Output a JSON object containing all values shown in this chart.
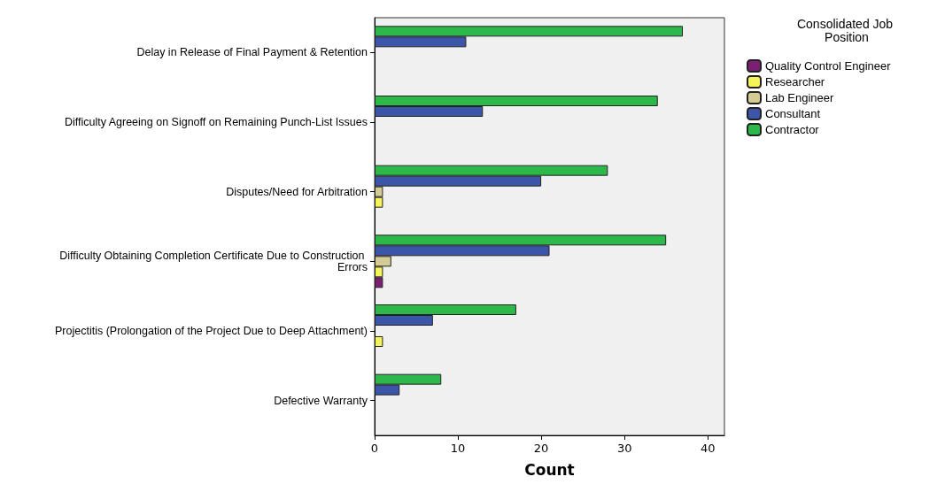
{
  "chart_data": {
    "type": "bar",
    "orientation": "horizontal",
    "xlabel": "Count",
    "legend_title": "Consolidated Job Position",
    "legend": "right",
    "categories": [
      "Delay in Release of Final Payment & Retention",
      "Difficulty Agreeing on Signoff on Remaining Punch-List Issues",
      "Disputes/Need for Arbitration",
      "Difficulty Obtaining Completion Certificate Due to Construction Errors",
      "Projectitis (Prolongation of the Project Due to Deep Attachment)",
      "Defective Warranty"
    ],
    "series": [
      {
        "name": "Quality Control Engineer",
        "color": "#7b1f73",
        "values": [
          null,
          null,
          null,
          1,
          null,
          null
        ]
      },
      {
        "name": "Researcher",
        "color": "#f5f55a",
        "values": [
          null,
          null,
          1,
          1,
          1,
          null
        ]
      },
      {
        "name": "Lab Engineer",
        "color": "#d4cc94",
        "values": [
          null,
          null,
          1,
          2,
          null,
          null
        ]
      },
      {
        "name": "Consultant",
        "color": "#3b55a8",
        "values": [
          11,
          13,
          20,
          21,
          7,
          3
        ]
      },
      {
        "name": "Contractor",
        "color": "#2db84a",
        "values": [
          37,
          34,
          28,
          35,
          17,
          8
        ]
      }
    ],
    "xlim": [
      0,
      42
    ],
    "xticks": [
      0,
      10,
      20,
      30,
      40
    ],
    "grid": false
  }
}
